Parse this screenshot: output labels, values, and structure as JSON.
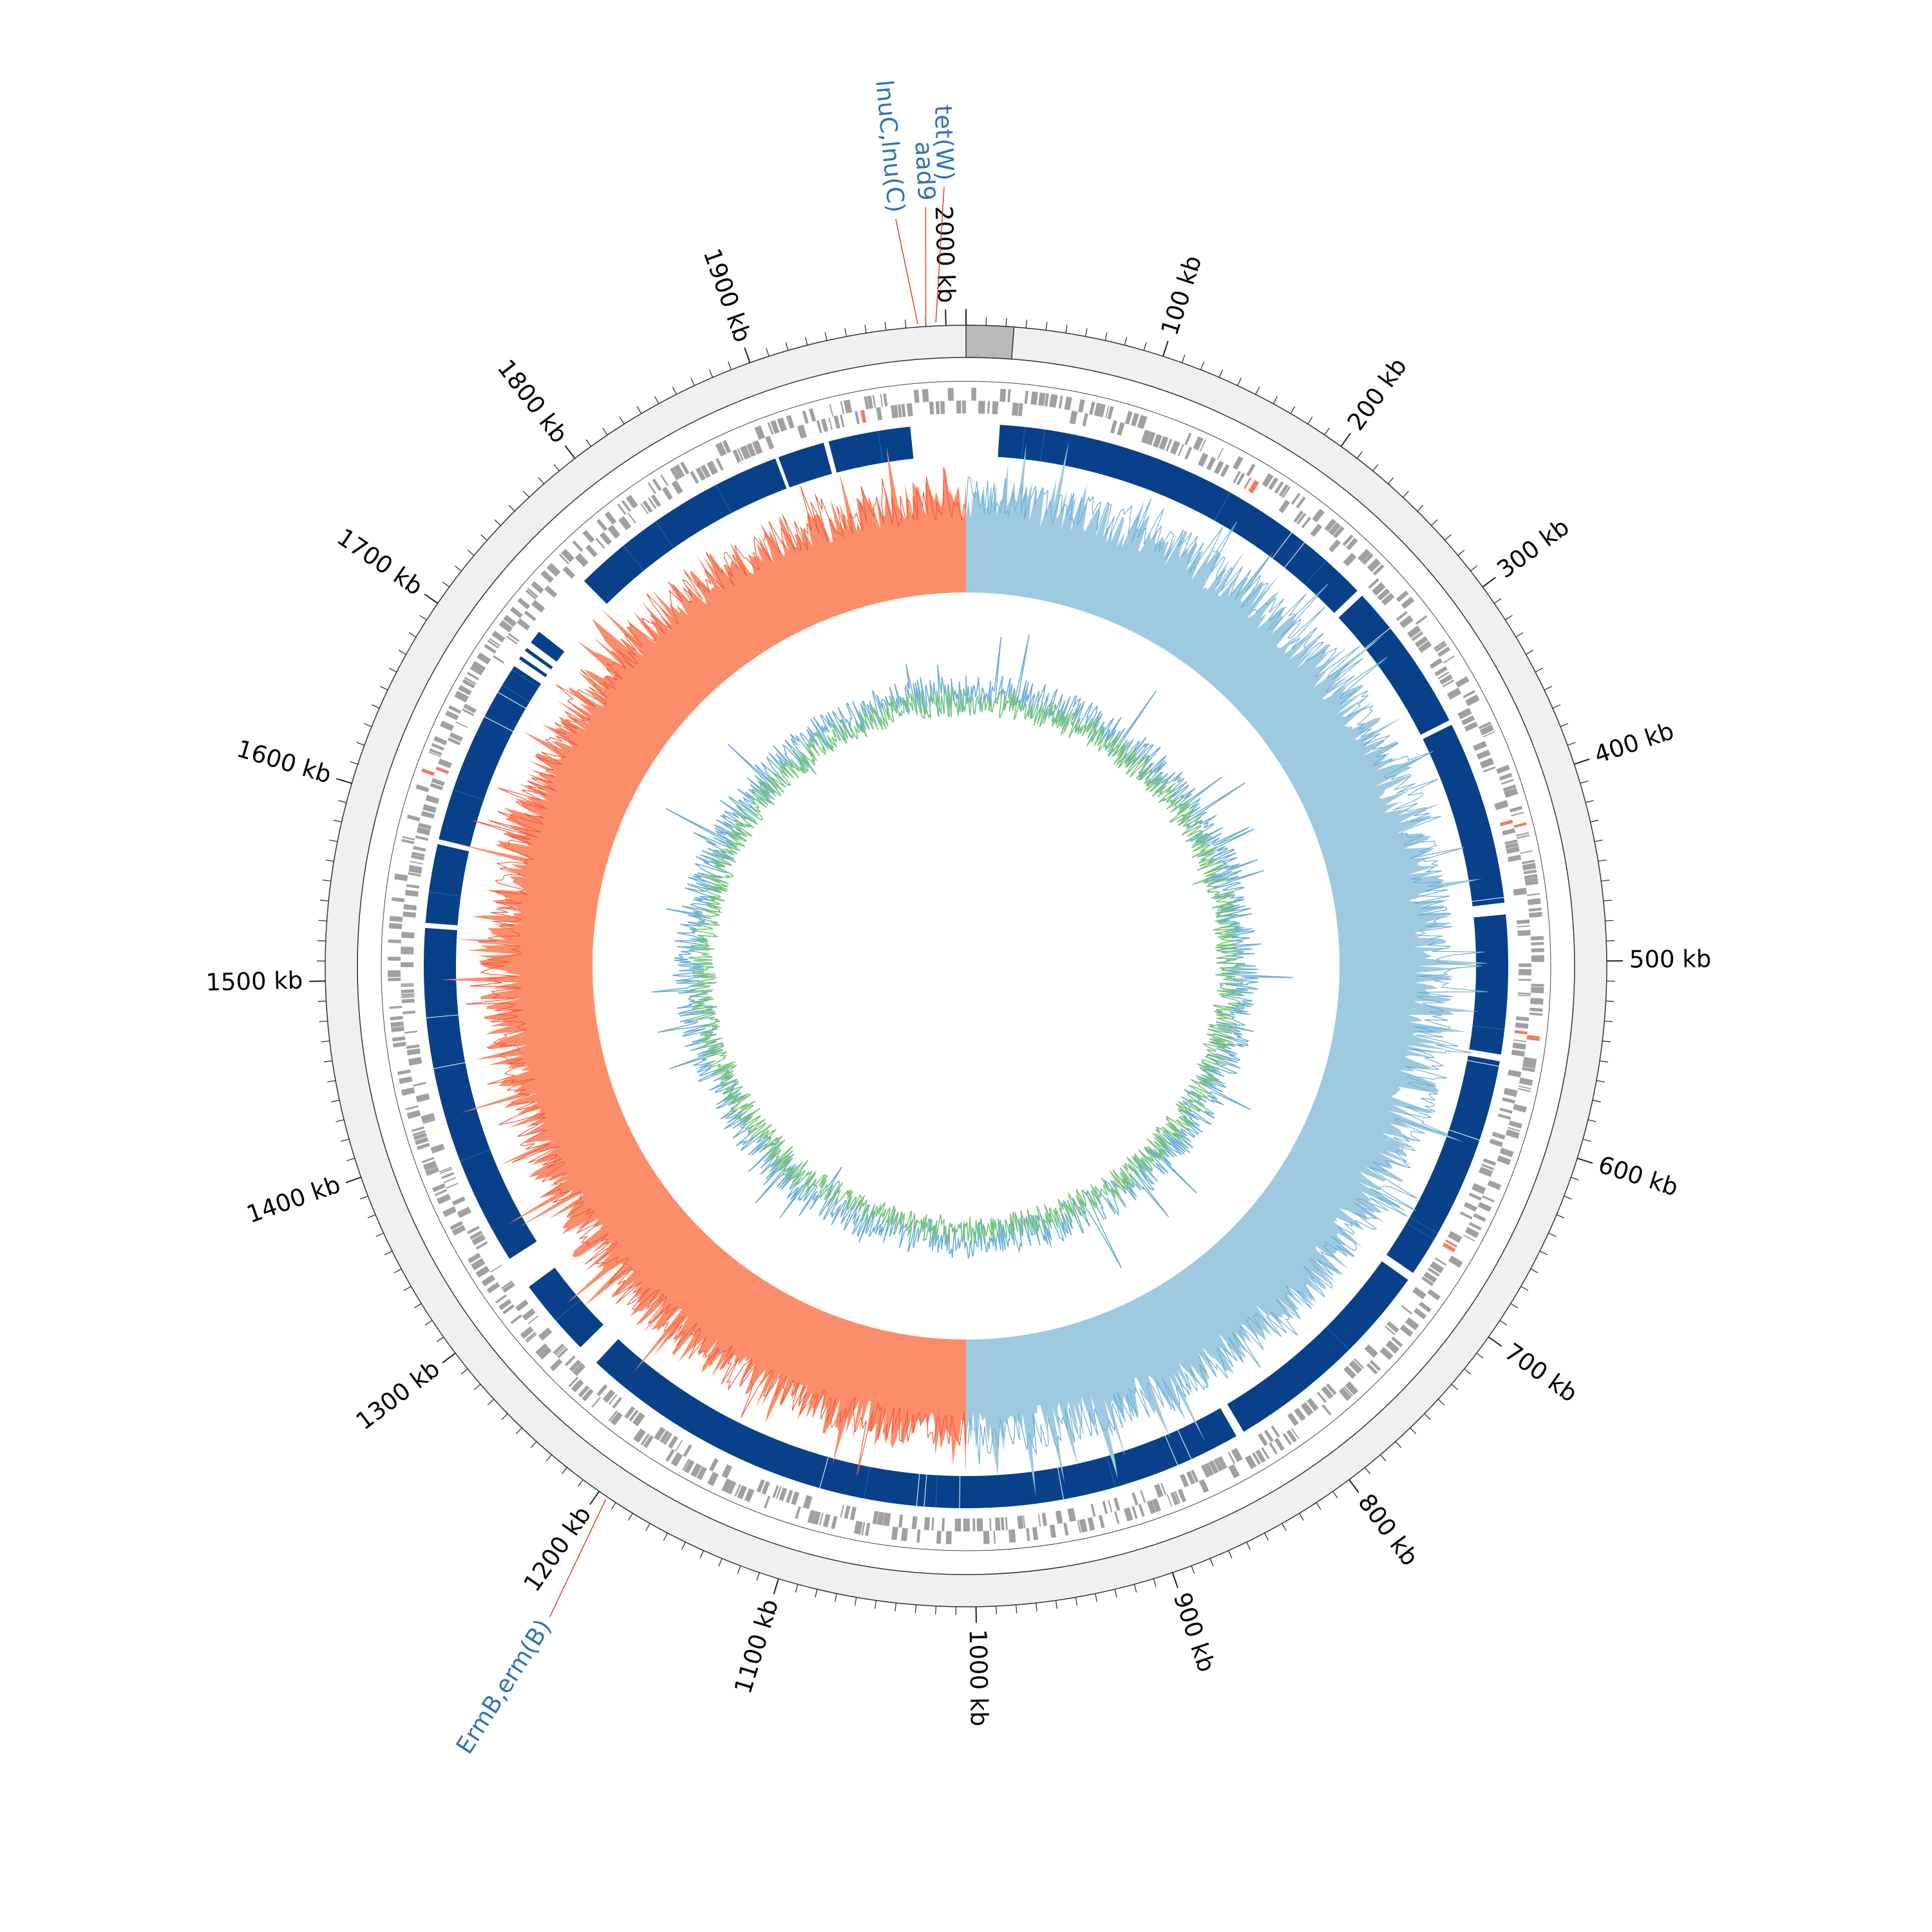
{
  "genome": {
    "length_kb": 2010,
    "ruler_tick_labels": [
      "100 kb",
      "200 kb",
      "300 kb",
      "400 kb",
      "500 kb",
      "600 kb",
      "700 kb",
      "800 kb",
      "900 kb",
      "1000 kb",
      "1100 kb",
      "1200 kb",
      "1300 kb",
      "1400 kb",
      "1500 kb",
      "1600 kb",
      "1700 kb",
      "1800 kb",
      "1900 kb",
      "2000 kb"
    ]
  },
  "resistance_genes": [
    {
      "label": "tet(W)",
      "position_kb": 1995
    },
    {
      "label": "aad9",
      "position_kb": 1990
    },
    {
      "label": "lnuC,lnu(C)",
      "position_kb": 1986
    },
    {
      "label": "ErmB,erm(B)",
      "position_kb": 1195
    }
  ],
  "colors": {
    "ruler_band": "#f0f0f0",
    "ruler_marker": "#b9b9b9",
    "gene_gray": "#a0a0a0",
    "gene_red": "#f37a5e",
    "contig_dark": "#08418a",
    "contig_mid": "#1b6bb0",
    "skew_positive": "#9ecae1",
    "skew_negative": "#fc8d6a",
    "skew_line_pos": "#6baed6",
    "skew_line_neg": "#f15a3c",
    "gc_green": "#74c476",
    "gc_blue": "#6baed6",
    "label_blue": "#2f74b5",
    "leader_red": "#e0432a"
  }
}
